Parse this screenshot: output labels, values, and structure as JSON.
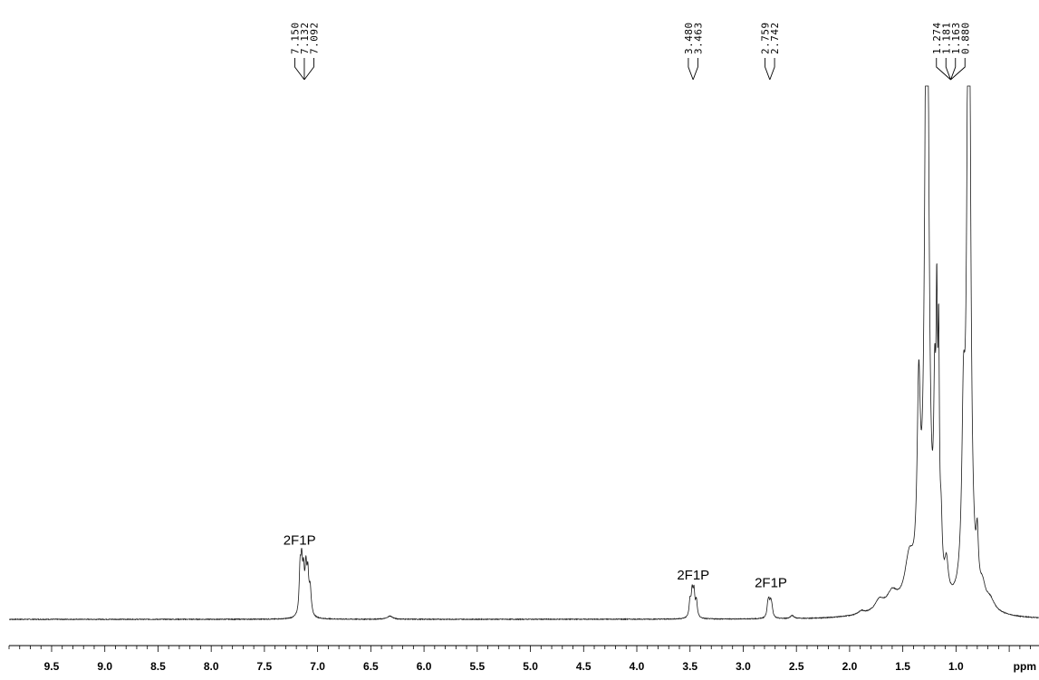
{
  "chart_data": {
    "type": "line",
    "x_unit": "ppm",
    "x_range": [
      9.9,
      0.22
    ],
    "x_reversed": true,
    "x_ticks": [
      "9.5",
      "9.0",
      "8.5",
      "8.0",
      "7.5",
      "7.0",
      "6.5",
      "6.0",
      "5.5",
      "5.0",
      "4.5",
      "4.0",
      "3.5",
      "3.0",
      "2.5",
      "2.0",
      "1.5",
      "1.0"
    ],
    "minor_tick_step": 0.1,
    "grid": false,
    "peak_labels": [
      {
        "group": "aromatic",
        "bracket_ppm": 7.125,
        "items": [
          {
            "label": "7.150",
            "ppm": 7.15
          },
          {
            "label": "7.132",
            "ppm": 7.132
          },
          {
            "label": "7.092",
            "ppm": 7.092
          }
        ]
      },
      {
        "group": "ch2-a",
        "bracket_ppm": 3.471,
        "items": [
          {
            "label": "3.480",
            "ppm": 3.48
          },
          {
            "label": "3.463",
            "ppm": 3.463
          }
        ]
      },
      {
        "group": "ch2-b",
        "bracket_ppm": 2.75,
        "items": [
          {
            "label": "2.759",
            "ppm": 2.759
          },
          {
            "label": "2.742",
            "ppm": 2.742
          }
        ]
      },
      {
        "group": "aliphatic",
        "bracket_ppm": 1.05,
        "items": [
          {
            "label": "1.274",
            "ppm": 1.274
          },
          {
            "label": "1.181",
            "ppm": 1.181
          },
          {
            "label": "1.163",
            "ppm": 1.163
          },
          {
            "label": "0.880",
            "ppm": 0.88
          }
        ]
      }
    ],
    "annotations": [
      {
        "text": "2F1P",
        "ppm": 7.17,
        "intensity": 0.14
      },
      {
        "text": "2F1P",
        "ppm": 3.47,
        "intensity": 0.075
      },
      {
        "text": "2F1P",
        "ppm": 2.74,
        "intensity": 0.06
      }
    ],
    "spectrum_peaks": [
      {
        "ppm": 7.165,
        "h": 0.08,
        "w": 0.01
      },
      {
        "ppm": 7.15,
        "h": 0.085,
        "w": 0.01
      },
      {
        "ppm": 7.132,
        "h": 0.07,
        "w": 0.01
      },
      {
        "ppm": 7.11,
        "h": 0.08,
        "w": 0.01
      },
      {
        "ppm": 7.092,
        "h": 0.07,
        "w": 0.01
      },
      {
        "ppm": 7.07,
        "h": 0.05,
        "w": 0.012
      },
      {
        "ppm": 6.32,
        "h": 0.006,
        "w": 0.03
      },
      {
        "ppm": 3.5,
        "h": 0.03,
        "w": 0.01
      },
      {
        "ppm": 3.48,
        "h": 0.045,
        "w": 0.01
      },
      {
        "ppm": 3.463,
        "h": 0.045,
        "w": 0.01
      },
      {
        "ppm": 3.44,
        "h": 0.03,
        "w": 0.01
      },
      {
        "ppm": 2.77,
        "h": 0.018,
        "w": 0.01
      },
      {
        "ppm": 2.759,
        "h": 0.025,
        "w": 0.01
      },
      {
        "ppm": 2.742,
        "h": 0.025,
        "w": 0.01
      },
      {
        "ppm": 2.73,
        "h": 0.016,
        "w": 0.01
      },
      {
        "ppm": 2.54,
        "h": 0.006,
        "w": 0.02
      },
      {
        "ppm": 1.89,
        "h": 0.006,
        "w": 0.03
      },
      {
        "ppm": 1.72,
        "h": 0.02,
        "w": 0.05
      },
      {
        "ppm": 1.6,
        "h": 0.03,
        "w": 0.06
      },
      {
        "ppm": 1.44,
        "h": 0.08,
        "w": 0.05
      },
      {
        "ppm": 1.35,
        "h": 0.35,
        "w": 0.018
      },
      {
        "ppm": 1.274,
        "h": 1.5,
        "w": 0.02
      },
      {
        "ppm": 1.2,
        "h": 0.3,
        "w": 0.012
      },
      {
        "ppm": 1.181,
        "h": 0.42,
        "w": 0.008
      },
      {
        "ppm": 1.163,
        "h": 0.4,
        "w": 0.008
      },
      {
        "ppm": 1.14,
        "h": 0.1,
        "w": 0.012
      },
      {
        "ppm": 1.09,
        "h": 0.06,
        "w": 0.02
      },
      {
        "ppm": 0.93,
        "h": 0.3,
        "w": 0.018
      },
      {
        "ppm": 0.88,
        "h": 1.5,
        "w": 0.018
      },
      {
        "ppm": 0.8,
        "h": 0.09,
        "w": 0.012
      },
      {
        "ppm": 0.75,
        "h": 0.03,
        "w": 0.03
      },
      {
        "ppm": 0.68,
        "h": 0.02,
        "w": 0.05
      }
    ]
  }
}
